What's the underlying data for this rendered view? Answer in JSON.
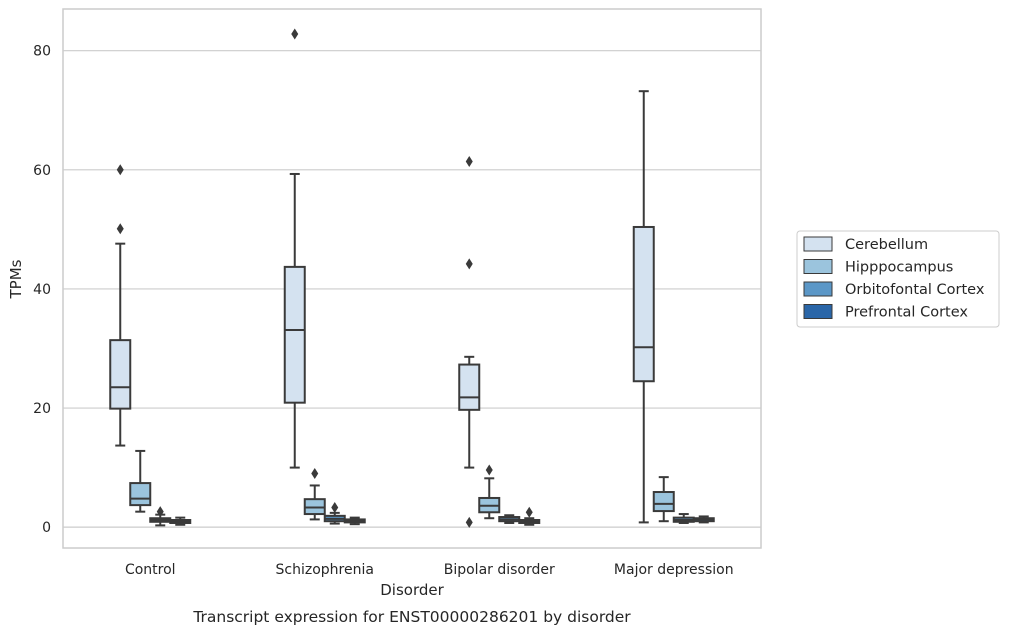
{
  "chart_data": {
    "type": "box",
    "caption": "Transcript expression for ENST00000286201 by disorder",
    "xlabel": "Disorder",
    "ylabel": "TPMs",
    "ylim": [
      -3.5,
      87
    ],
    "yticks": [
      0,
      20,
      40,
      60,
      80
    ],
    "grid": "horizontal",
    "legend_position": "right",
    "categories": [
      "Control",
      "Schizophrenia",
      "Bipolar disorder",
      "Major depression"
    ],
    "series": [
      {
        "name": "Cerebellum",
        "color": "#d4e2f0",
        "boxes": [
          {
            "whisker_low": 13.7,
            "q1": 19.9,
            "median": 23.5,
            "q3": 31.4,
            "whisker_high": 47.6,
            "outliers": [
              50.1,
              60.0
            ]
          },
          {
            "whisker_low": 10.0,
            "q1": 20.9,
            "median": 33.1,
            "q3": 43.7,
            "whisker_high": 59.3,
            "outliers": [
              82.8
            ]
          },
          {
            "whisker_low": 10.0,
            "q1": 19.7,
            "median": 21.8,
            "q3": 27.3,
            "whisker_high": 28.6,
            "outliers": [
              0.8,
              44.2,
              61.4
            ]
          },
          {
            "whisker_low": 0.8,
            "q1": 24.5,
            "median": 30.2,
            "q3": 50.4,
            "whisker_high": 73.2,
            "outliers": []
          }
        ]
      },
      {
        "name": "Hipppocampus",
        "color": "#9bc4dd",
        "boxes": [
          {
            "whisker_low": 2.6,
            "q1": 3.7,
            "median": 4.8,
            "q3": 7.4,
            "whisker_high": 12.8,
            "outliers": []
          },
          {
            "whisker_low": 1.3,
            "q1": 2.2,
            "median": 3.3,
            "q3": 4.7,
            "whisker_high": 7.0,
            "outliers": [
              9.0
            ]
          },
          {
            "whisker_low": 1.5,
            "q1": 2.5,
            "median": 3.6,
            "q3": 4.9,
            "whisker_high": 8.2,
            "outliers": [
              9.6
            ]
          },
          {
            "whisker_low": 1.0,
            "q1": 2.7,
            "median": 3.9,
            "q3": 5.9,
            "whisker_high": 8.4,
            "outliers": []
          }
        ]
      },
      {
        "name": "Orbitofontal Cortex",
        "color": "#5b97c7",
        "boxes": [
          {
            "whisker_low": 0.3,
            "q1": 0.9,
            "median": 1.2,
            "q3": 1.5,
            "whisker_high": 2.1,
            "outliers": [
              2.6
            ]
          },
          {
            "whisker_low": 0.6,
            "q1": 1.0,
            "median": 1.4,
            "q3": 1.9,
            "whisker_high": 2.4,
            "outliers": [
              3.3
            ]
          },
          {
            "whisker_low": 0.7,
            "q1": 1.0,
            "median": 1.3,
            "q3": 1.7,
            "whisker_high": 2.0,
            "outliers": []
          },
          {
            "whisker_low": 0.7,
            "q1": 0.9,
            "median": 1.2,
            "q3": 1.6,
            "whisker_high": 2.2,
            "outliers": []
          }
        ]
      },
      {
        "name": "Prefrontal Cortex",
        "color": "#2a66a8",
        "boxes": [
          {
            "whisker_low": 0.4,
            "q1": 0.7,
            "median": 1.0,
            "q3": 1.2,
            "whisker_high": 1.6,
            "outliers": []
          },
          {
            "whisker_low": 0.5,
            "q1": 0.8,
            "median": 1.1,
            "q3": 1.3,
            "whisker_high": 1.6,
            "outliers": []
          },
          {
            "whisker_low": 0.4,
            "q1": 0.7,
            "median": 0.9,
            "q3": 1.2,
            "whisker_high": 1.5,
            "outliers": [
              2.5
            ]
          },
          {
            "whisker_low": 0.8,
            "q1": 1.0,
            "median": 1.3,
            "q3": 1.5,
            "whisker_high": 1.8,
            "outliers": []
          }
        ]
      }
    ]
  }
}
